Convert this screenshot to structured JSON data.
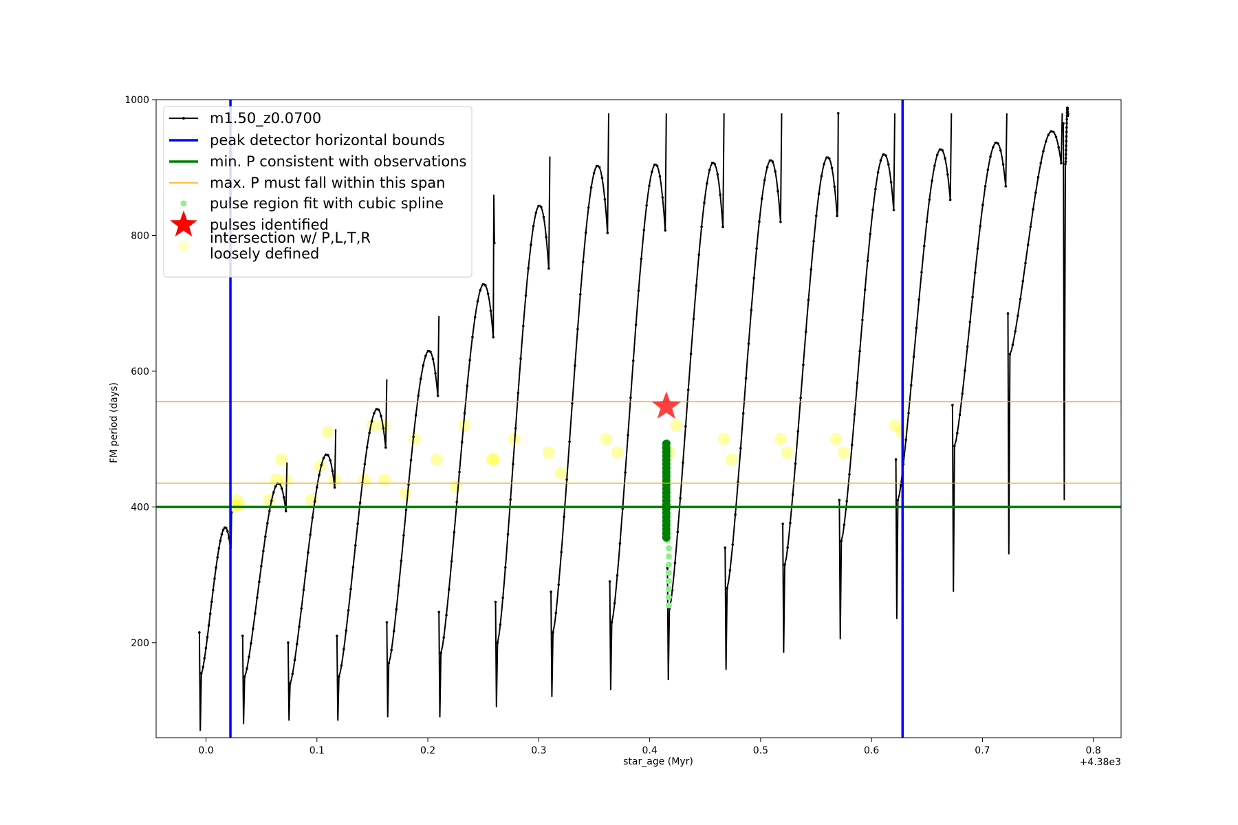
{
  "chart_data": {
    "type": "line",
    "xlabel": "star_age (Myr)",
    "ylabel": "FM period (days)",
    "x_offset_label": "+4.38e3",
    "xlim": [
      -0.045,
      0.825
    ],
    "ylim": [
      60,
      1000
    ],
    "xticks": [
      0.0,
      0.1,
      0.2,
      0.3,
      0.4,
      0.5,
      0.6,
      0.7,
      0.8
    ],
    "xtick_labels": [
      "0.0",
      "0.1",
      "0.2",
      "0.3",
      "0.4",
      "0.5",
      "0.6",
      "0.7",
      "0.8"
    ],
    "yticks": [
      200,
      400,
      600,
      800,
      1000
    ],
    "ytick_labels": [
      "200",
      "400",
      "600",
      "800",
      "1000"
    ],
    "grid": false,
    "legend": {
      "position": "upper-left",
      "entries": [
        {
          "label": "m1.50_z0.0700",
          "style": "line-marker",
          "color": "#000000"
        },
        {
          "label": "peak detector horizontal bounds",
          "style": "line",
          "color": "#0000ff"
        },
        {
          "label": "min. P consistent with observations",
          "style": "line",
          "color": "#008000"
        },
        {
          "label": "max. P must fall within this span",
          "style": "thin-line",
          "color": "#ffa500"
        },
        {
          "label": "pulse region fit with cubic spline",
          "style": "dot",
          "color": "#90ee90"
        },
        {
          "label": "pulses identified",
          "style": "star",
          "color": "#ff0000"
        },
        {
          "label": "intersection w/ P,L,T,R",
          "label2": "loosely defined",
          "style": "dot",
          "color": "#ffffcc"
        }
      ]
    },
    "vertical_bounds": [
      0.022,
      0.628
    ],
    "min_period_line": 400,
    "max_period_span": [
      435,
      555
    ],
    "series": [
      {
        "name": "m1.50_z0.0700",
        "color": "#000000",
        "cycles": [
          {
            "start": -0.006,
            "end": 0.023,
            "min": 70,
            "base": 155,
            "peak": 400,
            "spike": 340
          },
          {
            "start": 0.033,
            "end": 0.073,
            "min": 80,
            "base": 150,
            "peak": 475
          },
          {
            "start": 0.074,
            "end": 0.117,
            "min": 85,
            "base": 140,
            "peak": 525
          },
          {
            "start": 0.118,
            "end": 0.163,
            "min": 85,
            "base": 150,
            "peak": 600
          },
          {
            "start": 0.163,
            "end": 0.21,
            "min": 90,
            "base": 170,
            "peak": 695
          },
          {
            "start": 0.21,
            "end": 0.26,
            "min": 90,
            "base": 185,
            "peak": 805,
            "spike": 860
          },
          {
            "start": 0.261,
            "end": 0.31,
            "min": 105,
            "base": 200,
            "peak": 935
          },
          {
            "start": 0.311,
            "end": 0.363,
            "min": 120,
            "base": 215,
            "peak": 1000
          },
          {
            "start": 0.364,
            "end": 0.415,
            "min": 130,
            "base": 230,
            "peak": 1000
          },
          {
            "start": 0.416,
            "end": 0.467,
            "min": 145,
            "base": 250,
            "peak": 1000
          },
          {
            "start": 0.468,
            "end": 0.519,
            "min": 160,
            "base": 280,
            "peak": 1000
          },
          {
            "start": 0.52,
            "end": 0.57,
            "min": 185,
            "base": 315,
            "peak": 1000,
            "spike": 840
          },
          {
            "start": 0.571,
            "end": 0.621,
            "min": 205,
            "base": 350,
            "peak": 1000
          },
          {
            "start": 0.622,
            "end": 0.672,
            "min": 235,
            "base": 410,
            "peak": 1000
          },
          {
            "start": 0.673,
            "end": 0.722,
            "min": 275,
            "base": 490,
            "peak": 1000
          },
          {
            "start": 0.723,
            "end": 0.772,
            "min": 330,
            "base": 625,
            "peak": 1000
          },
          {
            "start": 0.773,
            "end": 0.778,
            "min": 410,
            "base": 905,
            "peak": 1000
          }
        ]
      }
    ],
    "intersections": [
      [
        0.026,
        402
      ],
      [
        0.028,
        410
      ],
      [
        0.03,
        402
      ],
      [
        0.057,
        410
      ],
      [
        0.063,
        440
      ],
      [
        0.068,
        470
      ],
      [
        0.072,
        440
      ],
      [
        0.095,
        410
      ],
      [
        0.103,
        460
      ],
      [
        0.11,
        510
      ],
      [
        0.116,
        440
      ],
      [
        0.143,
        440
      ],
      [
        0.15,
        520
      ],
      [
        0.16,
        520
      ],
      [
        0.161,
        440
      ],
      [
        0.18,
        420
      ],
      [
        0.188,
        500
      ],
      [
        0.208,
        470
      ],
      [
        0.225,
        430
      ],
      [
        0.233,
        520
      ],
      [
        0.258,
        470
      ],
      [
        0.26,
        470
      ],
      [
        0.278,
        500
      ],
      [
        0.309,
        480
      ],
      [
        0.32,
        450
      ],
      [
        0.361,
        500
      ],
      [
        0.371,
        480
      ],
      [
        0.418,
        480
      ],
      [
        0.424,
        520
      ],
      [
        0.467,
        500
      ],
      [
        0.474,
        470
      ],
      [
        0.518,
        500
      ],
      [
        0.524,
        480
      ],
      [
        0.568,
        500
      ],
      [
        0.575,
        480
      ],
      [
        0.621,
        520
      ],
      [
        0.627,
        510
      ]
    ],
    "spline_region": {
      "x": 0.416,
      "y_start": 255,
      "y_end": 495
    },
    "spline_fit": {
      "x": 0.415,
      "y_start": 355,
      "y_end": 495
    },
    "pulses_identified": [
      {
        "x": 0.415,
        "y": 548
      }
    ]
  }
}
